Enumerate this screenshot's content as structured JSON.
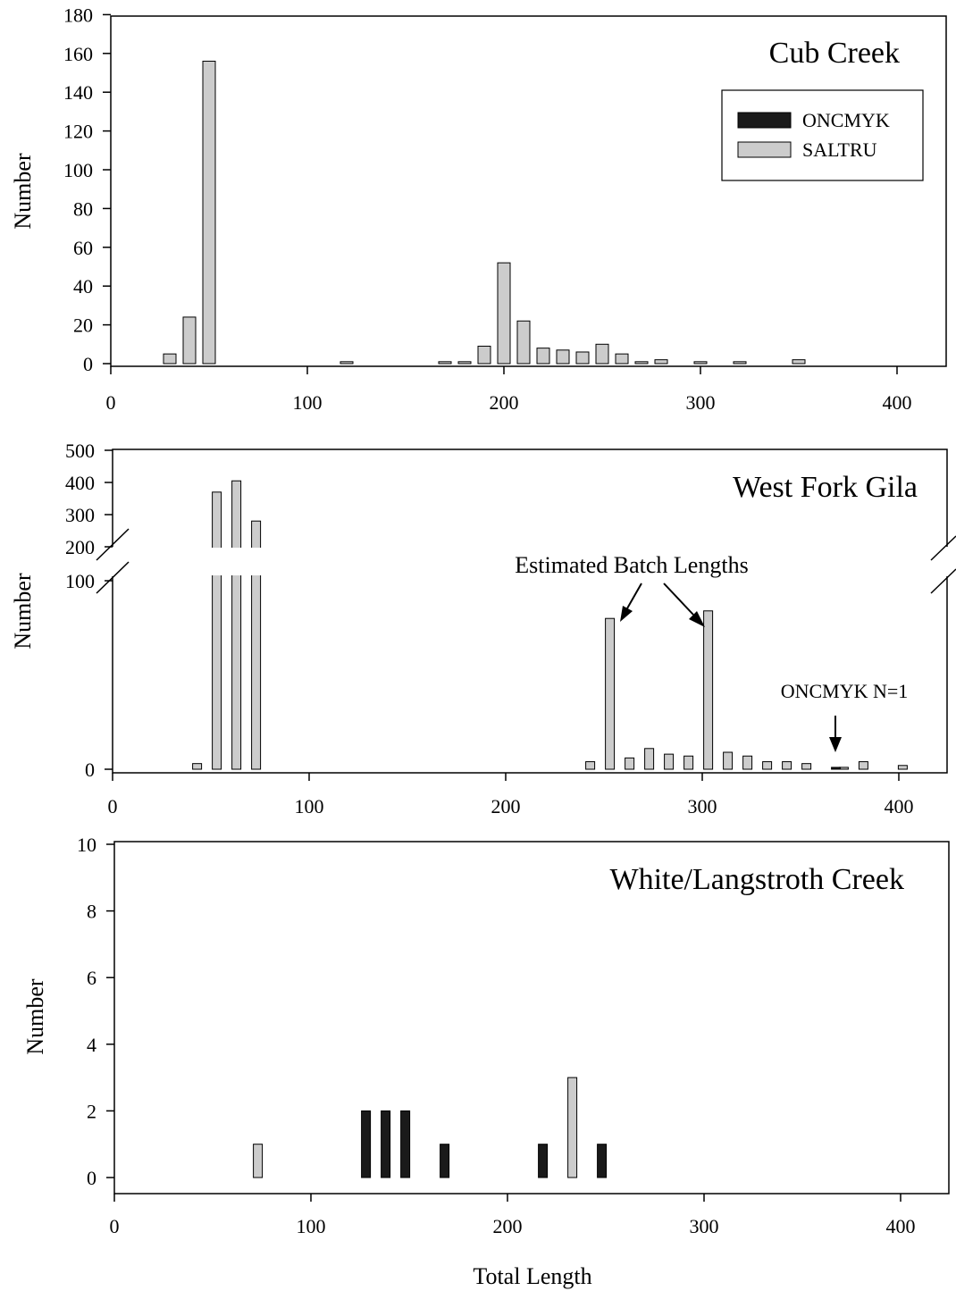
{
  "colors": {
    "ONCMYK": "#1a1a1a",
    "SALTRU": "#cccccc",
    "axis": "#000000"
  },
  "xlabel": "Total Length",
  "chart_data": [
    {
      "type": "bar",
      "title": "Cub Creek",
      "xlabel": "",
      "ylabel": "Number",
      "xlim": [
        0,
        425
      ],
      "ylim": [
        0,
        180
      ],
      "xticks": [
        "0",
        "100",
        "200",
        "300",
        "400"
      ],
      "yticks": [
        "0",
        "20",
        "40",
        "60",
        "80",
        "100",
        "120",
        "140",
        "160",
        "180"
      ],
      "legend": {
        "position": "top-right",
        "entries": [
          "ONCMYK",
          "SALTRU"
        ]
      },
      "series": [
        {
          "name": "ONCMYK",
          "points": []
        },
        {
          "name": "SALTRU",
          "points": [
            {
              "x": 30,
              "y": 5
            },
            {
              "x": 40,
              "y": 24
            },
            {
              "x": 50,
              "y": 156
            },
            {
              "x": 120,
              "y": 1
            },
            {
              "x": 170,
              "y": 1
            },
            {
              "x": 180,
              "y": 1
            },
            {
              "x": 190,
              "y": 9
            },
            {
              "x": 200,
              "y": 52
            },
            {
              "x": 210,
              "y": 22
            },
            {
              "x": 220,
              "y": 8
            },
            {
              "x": 230,
              "y": 7
            },
            {
              "x": 240,
              "y": 6
            },
            {
              "x": 250,
              "y": 10
            },
            {
              "x": 260,
              "y": 5
            },
            {
              "x": 270,
              "y": 1
            },
            {
              "x": 280,
              "y": 2
            },
            {
              "x": 300,
              "y": 1
            },
            {
              "x": 320,
              "y": 1
            },
            {
              "x": 350,
              "y": 2
            }
          ]
        }
      ]
    },
    {
      "type": "bar",
      "title": "West Fork Gila",
      "xlabel": "",
      "ylabel": "Number",
      "xlim": [
        0,
        425
      ],
      "y_axis_break": {
        "lower_range": [
          0,
          100
        ],
        "upper_range": [
          200,
          500
        ]
      },
      "xticks": [
        "0",
        "100",
        "200",
        "300",
        "400"
      ],
      "yticks_lower": [
        "0",
        "100"
      ],
      "yticks_upper": [
        "200",
        "300",
        "400",
        "500"
      ],
      "annotations": {
        "batch": "Estimated Batch Lengths",
        "oncmyk": "ONCMYK N=1"
      },
      "series": [
        {
          "name": "ONCMYK",
          "points": [
            {
              "x": 368,
              "y": 1
            }
          ]
        },
        {
          "name": "SALTRU",
          "points": [
            {
              "x": 43,
              "y": 3
            },
            {
              "x": 53,
              "y": 370
            },
            {
              "x": 63,
              "y": 405
            },
            {
              "x": 73,
              "y": 280
            },
            {
              "x": 243,
              "y": 4
            },
            {
              "x": 253,
              "y": 80
            },
            {
              "x": 263,
              "y": 6
            },
            {
              "x": 273,
              "y": 11
            },
            {
              "x": 283,
              "y": 8
            },
            {
              "x": 293,
              "y": 7
            },
            {
              "x": 303,
              "y": 84
            },
            {
              "x": 313,
              "y": 9
            },
            {
              "x": 323,
              "y": 7
            },
            {
              "x": 333,
              "y": 4
            },
            {
              "x": 343,
              "y": 4
            },
            {
              "x": 353,
              "y": 3
            },
            {
              "x": 372,
              "y": 1
            },
            {
              "x": 382,
              "y": 4
            },
            {
              "x": 402,
              "y": 2
            }
          ]
        }
      ]
    },
    {
      "type": "bar",
      "title": "White/Langstroth Creek",
      "xlabel": "Total Length",
      "ylabel": "Number",
      "xlim": [
        0,
        425
      ],
      "ylim": [
        0,
        10
      ],
      "xticks": [
        "0",
        "100",
        "200",
        "300",
        "400"
      ],
      "yticks": [
        "0",
        "2",
        "4",
        "6",
        "8",
        "10"
      ],
      "series": [
        {
          "name": "ONCMYK",
          "points": [
            {
              "x": 128,
              "y": 2
            },
            {
              "x": 138,
              "y": 2
            },
            {
              "x": 148,
              "y": 2
            },
            {
              "x": 168,
              "y": 1
            },
            {
              "x": 218,
              "y": 1
            },
            {
              "x": 248,
              "y": 1
            }
          ]
        },
        {
          "name": "SALTRU",
          "points": [
            {
              "x": 73,
              "y": 1
            },
            {
              "x": 233,
              "y": 3
            }
          ]
        }
      ]
    }
  ]
}
